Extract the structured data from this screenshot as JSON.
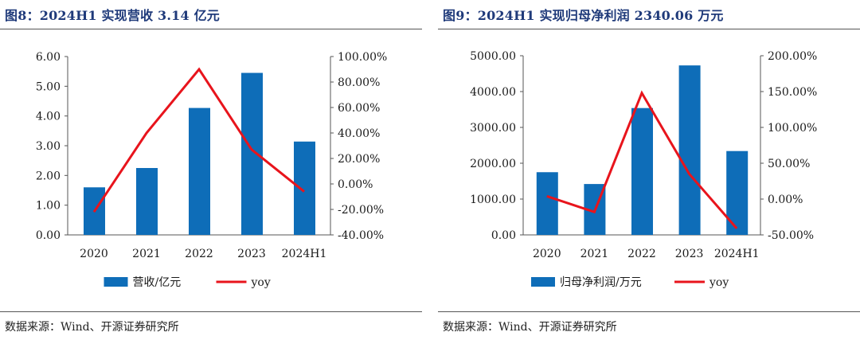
{
  "page": {
    "source_text_left": "数据来源：Wind、开源证券研究所",
    "source_text_right": "数据来源：Wind、开源证券研究所"
  },
  "colors": {
    "bar": "#0E6DB8",
    "line": "#E8141C",
    "axis": "#555555",
    "title": "#1F3A7A"
  },
  "chart_data": [
    {
      "type": "bar",
      "title": "图8：2024H1 实现营收 3.14 亿元",
      "categories": [
        "2020",
        "2021",
        "2022",
        "2023",
        "2024H1"
      ],
      "series": [
        {
          "name": "营收/亿元",
          "kind": "bar",
          "axis": "left",
          "values": [
            1.6,
            2.25,
            4.27,
            5.45,
            3.14
          ]
        },
        {
          "name": "yoy",
          "kind": "line",
          "axis": "right",
          "values": [
            -22.0,
            40.0,
            90.0,
            27.0,
            -6.0
          ]
        }
      ],
      "y_left": {
        "min": 0,
        "max": 6,
        "step": 1,
        "ticks": [
          "0.00",
          "1.00",
          "2.00",
          "3.00",
          "4.00",
          "5.00",
          "6.00"
        ]
      },
      "y_right": {
        "min": -40,
        "max": 100,
        "step": 20,
        "ticks": [
          "-40.00%",
          "-20.00%",
          "0.00%",
          "20.00%",
          "40.00%",
          "60.00%",
          "80.00%",
          "100.00%"
        ]
      },
      "legend_position": "bottom",
      "grid": false
    },
    {
      "type": "bar",
      "title": "图9：2024H1 实现归母净利润 2340.06 万元",
      "categories": [
        "2020",
        "2021",
        "2022",
        "2023",
        "2024H1"
      ],
      "series": [
        {
          "name": "归母净利润/万元",
          "kind": "bar",
          "axis": "left",
          "values": [
            1750,
            1420,
            3540,
            4730,
            2340.06
          ]
        },
        {
          "name": "yoy",
          "kind": "line",
          "axis": "right",
          "values": [
            4.0,
            -18.0,
            148.0,
            35.0,
            -41.0
          ]
        }
      ],
      "y_left": {
        "min": 0,
        "max": 5000,
        "step": 1000,
        "ticks": [
          "0.00",
          "1000.00",
          "2000.00",
          "3000.00",
          "4000.00",
          "5000.00"
        ]
      },
      "y_right": {
        "min": -50,
        "max": 200,
        "step": 50,
        "ticks": [
          "-50.00%",
          "0.00%",
          "50.00%",
          "100.00%",
          "150.00%",
          "200.00%"
        ]
      },
      "legend_position": "bottom",
      "grid": false
    }
  ]
}
